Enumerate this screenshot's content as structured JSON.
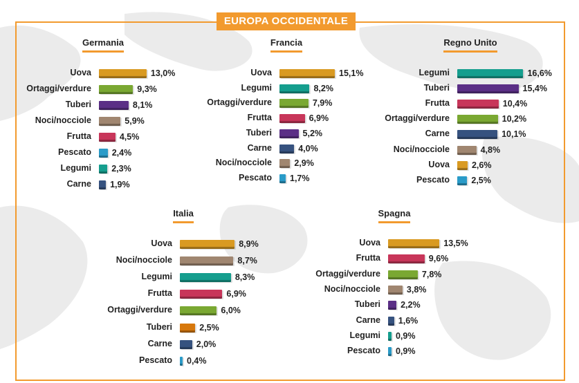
{
  "header": {
    "title": "EUROPA OCCIDENTALE"
  },
  "colors": {
    "accent": "#f29a2e",
    "Uova": "#d99a22",
    "Ortaggi/verdure": "#7aa832",
    "Tuberi": "#5b2f86",
    "Noci/nocciole": "#a08670",
    "Frutta": "#c8365a",
    "Pescato": "#2a9bc8",
    "Legumi": "#159e8e",
    "Carne": "#36527f",
    "TuberiItalia": "#d7780c"
  },
  "chart_data": [
    {
      "type": "bar",
      "title": "Germania",
      "categories": [
        "Uova",
        "Ortaggi/verdure",
        "Tuberi",
        "Noci/nocciole",
        "Frutta",
        "Pescato",
        "Legumi",
        "Carne"
      ],
      "values": [
        13.0,
        9.3,
        8.1,
        5.9,
        4.5,
        2.4,
        2.3,
        1.9
      ],
      "labels": [
        "13,0%",
        "9,3%",
        "8,1%",
        "5,9%",
        "4,5%",
        "2,4%",
        "2,3%",
        "1,9%"
      ]
    },
    {
      "type": "bar",
      "title": "Francia",
      "categories": [
        "Uova",
        "Legumi",
        "Ortaggi/verdure",
        "Frutta",
        "Tuberi",
        "Carne",
        "Noci/nocciole",
        "Pescato"
      ],
      "values": [
        15.1,
        8.2,
        7.9,
        6.9,
        5.2,
        4.0,
        2.9,
        1.7
      ],
      "labels": [
        "15,1%",
        "8,2%",
        "7,9%",
        "6,9%",
        "5,2%",
        "4,0%",
        "2,9%",
        "1,7%"
      ]
    },
    {
      "type": "bar",
      "title": "Regno Unito",
      "categories": [
        "Legumi",
        "Tuberi",
        "Frutta",
        "Ortaggi/verdure",
        "Carne",
        "Noci/nocciole",
        "Uova",
        "Pescato"
      ],
      "values": [
        16.6,
        15.4,
        10.4,
        10.2,
        10.1,
        4.8,
        2.6,
        2.5
      ],
      "labels": [
        "16,6%",
        "15,4%",
        "10,4%",
        "10,2%",
        "10,1%",
        "4,8%",
        "2,6%",
        "2,5%"
      ]
    },
    {
      "type": "bar",
      "title": "Italia",
      "categories": [
        "Uova",
        "Noci/nocciole",
        "Legumi",
        "Frutta",
        "Ortaggi/verdure",
        "Tuberi",
        "Carne",
        "Pescato"
      ],
      "values": [
        8.9,
        8.7,
        8.3,
        6.9,
        6.0,
        2.5,
        2.0,
        0.4
      ],
      "labels": [
        "8,9%",
        "8,7%",
        "8,3%",
        "6,9%",
        "6,0%",
        "2,5%",
        "2,0%",
        "0,4%"
      ]
    },
    {
      "type": "bar",
      "title": "Spagna",
      "categories": [
        "Uova",
        "Frutta",
        "Ortaggi/verdure",
        "Noci/nocciole",
        "Tuberi",
        "Carne",
        "Legumi",
        "Pescato"
      ],
      "values": [
        13.5,
        9.6,
        7.8,
        3.8,
        2.2,
        1.6,
        0.9,
        0.9
      ],
      "labels": [
        "13,5%",
        "9,6%",
        "7,8%",
        "3,8%",
        "2,2%",
        "1,6%",
        "0,9%",
        "0,9%"
      ]
    }
  ]
}
